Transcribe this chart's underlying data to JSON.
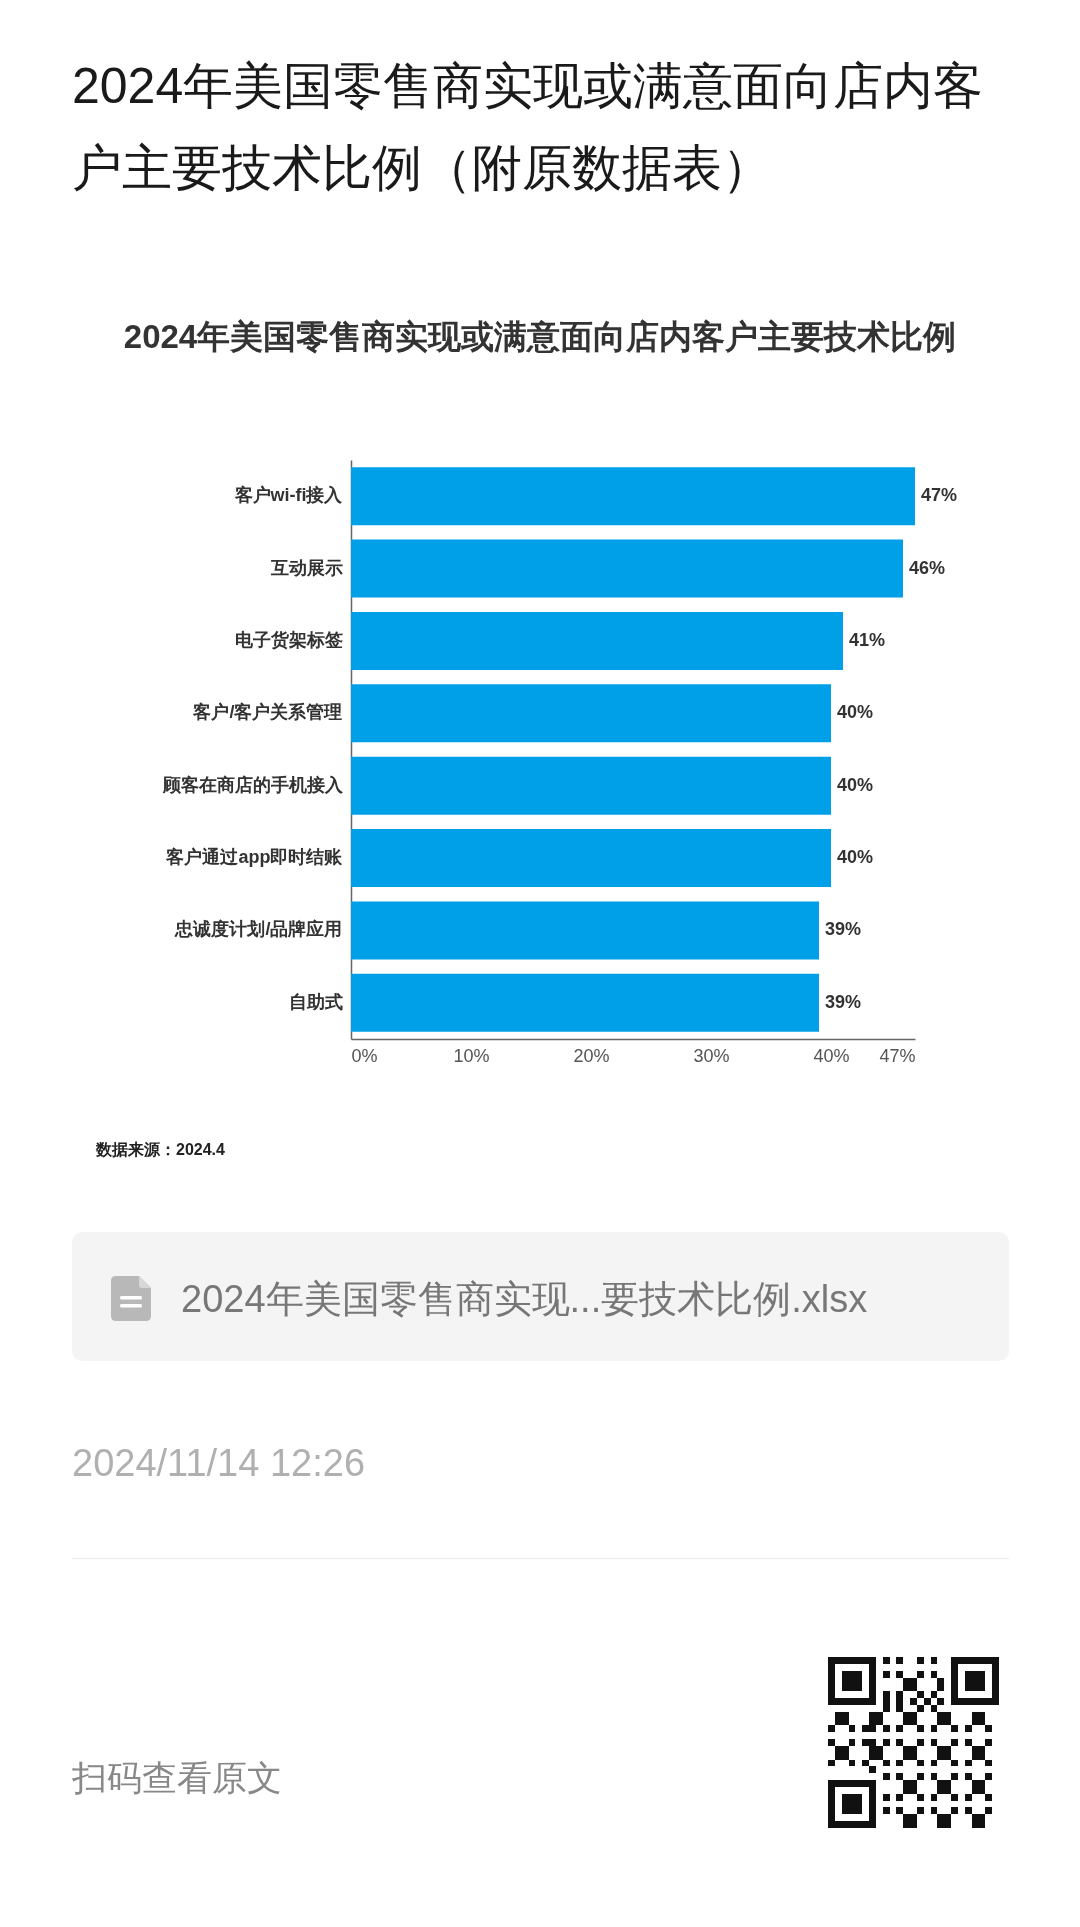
{
  "chart_data": {
    "type": "bar",
    "orientation": "horizontal",
    "title": "2024年美国零售商实现或满意面向店内客户主要技术比例（附原数据表）",
    "subtitle": "2024年美国零售商实现或满意面向店内客户主要技术比例",
    "categories": [
      "客户wi-fi接入",
      "互动展示",
      "电子货架标签",
      "客户/客户关系管理",
      "顾客在商店的手机接入",
      "客户通过app即时结账",
      "忠诚度计划/品牌应用",
      "自助式"
    ],
    "values": [
      47,
      46,
      41,
      40,
      40,
      40,
      39,
      39
    ],
    "value_labels": [
      "47%",
      "46%",
      "41%",
      "40%",
      "40%",
      "40%",
      "39%",
      "39%"
    ],
    "color": "#00a0e9",
    "xlim": [
      0,
      47
    ],
    "xticks": [
      {
        "value": 0,
        "label": "0%"
      },
      {
        "value": 10,
        "label": "10%"
      },
      {
        "value": 20,
        "label": "20%"
      },
      {
        "value": 30,
        "label": "30%"
      },
      {
        "value": 40,
        "label": "40%"
      },
      {
        "value": 47,
        "label": "47%"
      }
    ],
    "annotations": [
      "数据来源：2024.4",
      "2024年美国零售商实现...要技术比例.xlsx",
      "2024/11/14 12:26",
      "扫码查看原文"
    ]
  }
}
